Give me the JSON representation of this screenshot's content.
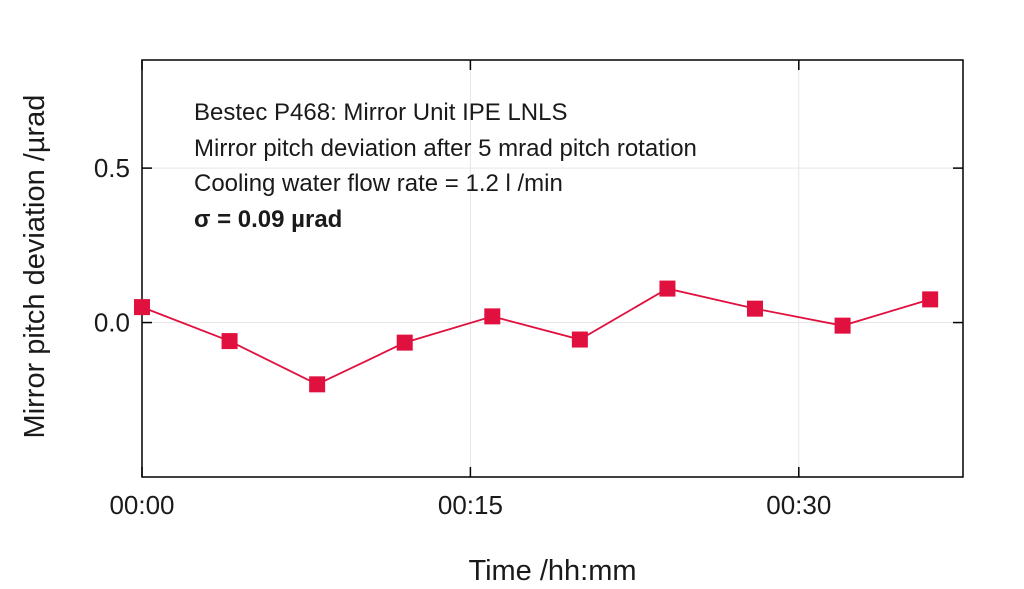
{
  "chart_data": {
    "type": "line",
    "title": "",
    "xlabel": "Time /hh:mm",
    "ylabel": "Mirror pitch deviation /µrad",
    "x_unit": "minutes",
    "x": [
      0,
      4,
      8,
      12,
      16,
      20,
      24,
      28,
      32,
      36
    ],
    "y": [
      0.05,
      -0.06,
      -0.2,
      -0.065,
      0.02,
      -0.055,
      0.11,
      0.045,
      -0.01,
      0.075
    ],
    "xlim": [
      0,
      37.5
    ],
    "ylim": [
      -0.5,
      0.85
    ],
    "x_ticks": [
      {
        "value": 0,
        "label": "00:00"
      },
      {
        "value": 15,
        "label": "00:15"
      },
      {
        "value": 30,
        "label": "00:30"
      }
    ],
    "y_ticks": [
      {
        "value": 0.0,
        "label": "0.0"
      },
      {
        "value": 0.5,
        "label": "0.5"
      }
    ],
    "grid": true,
    "series_color": "#e0103f",
    "marker": "square",
    "annotations": [
      "Bestec P468: Mirror Unit IPE LNLS",
      "Mirror pitch deviation after 5 mrad pitch rotation",
      "Cooling water flow rate = 1.2 l /min",
      "σ = 0.09 µrad"
    ]
  }
}
